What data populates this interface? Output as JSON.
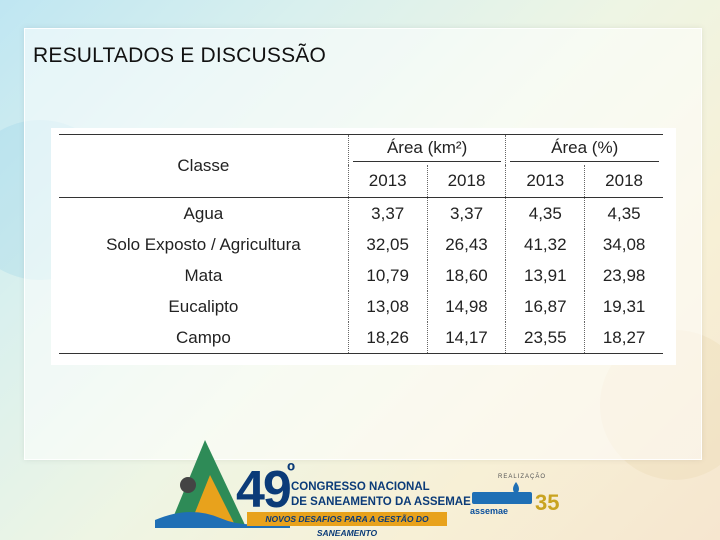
{
  "slide": {
    "title": "RESULTADOS E DISCUSSÃO"
  },
  "table": {
    "header_class": "Classe",
    "group_area_km2": "Área (km²)",
    "group_area_pct": "Área (%)",
    "years": [
      "2013",
      "2018",
      "2013",
      "2018"
    ],
    "rows": [
      {
        "classe": "Agua",
        "values": [
          "3,37",
          "3,37",
          "4,35",
          "4,35"
        ]
      },
      {
        "classe": "Solo Exposto / Agricultura",
        "values": [
          "32,05",
          "26,43",
          "41,32",
          "34,08"
        ]
      },
      {
        "classe": "Mata",
        "values": [
          "10,79",
          "18,60",
          "13,91",
          "23,98"
        ]
      },
      {
        "classe": "Eucalipto",
        "values": [
          "13,08",
          "14,98",
          "16,87",
          "19,31"
        ]
      },
      {
        "classe": "Campo",
        "values": [
          "18,26",
          "14,17",
          "23,55",
          "18,27"
        ]
      }
    ]
  },
  "footer": {
    "edition": "49",
    "edition_sup": "º",
    "line1": "CONGRESSO NACIONAL",
    "line2": "DE SANEAMENTO DA ASSEMAE",
    "banner": "NOVOS DESAFIOS PARA A GESTÃO DO SANEAMENTO",
    "realizacao": "REALIZAÇÃO",
    "org": "assemae",
    "anos": "35"
  },
  "colors": {
    "brand_blue": "#0b3b78",
    "banner_orange": "#e8a21c"
  }
}
